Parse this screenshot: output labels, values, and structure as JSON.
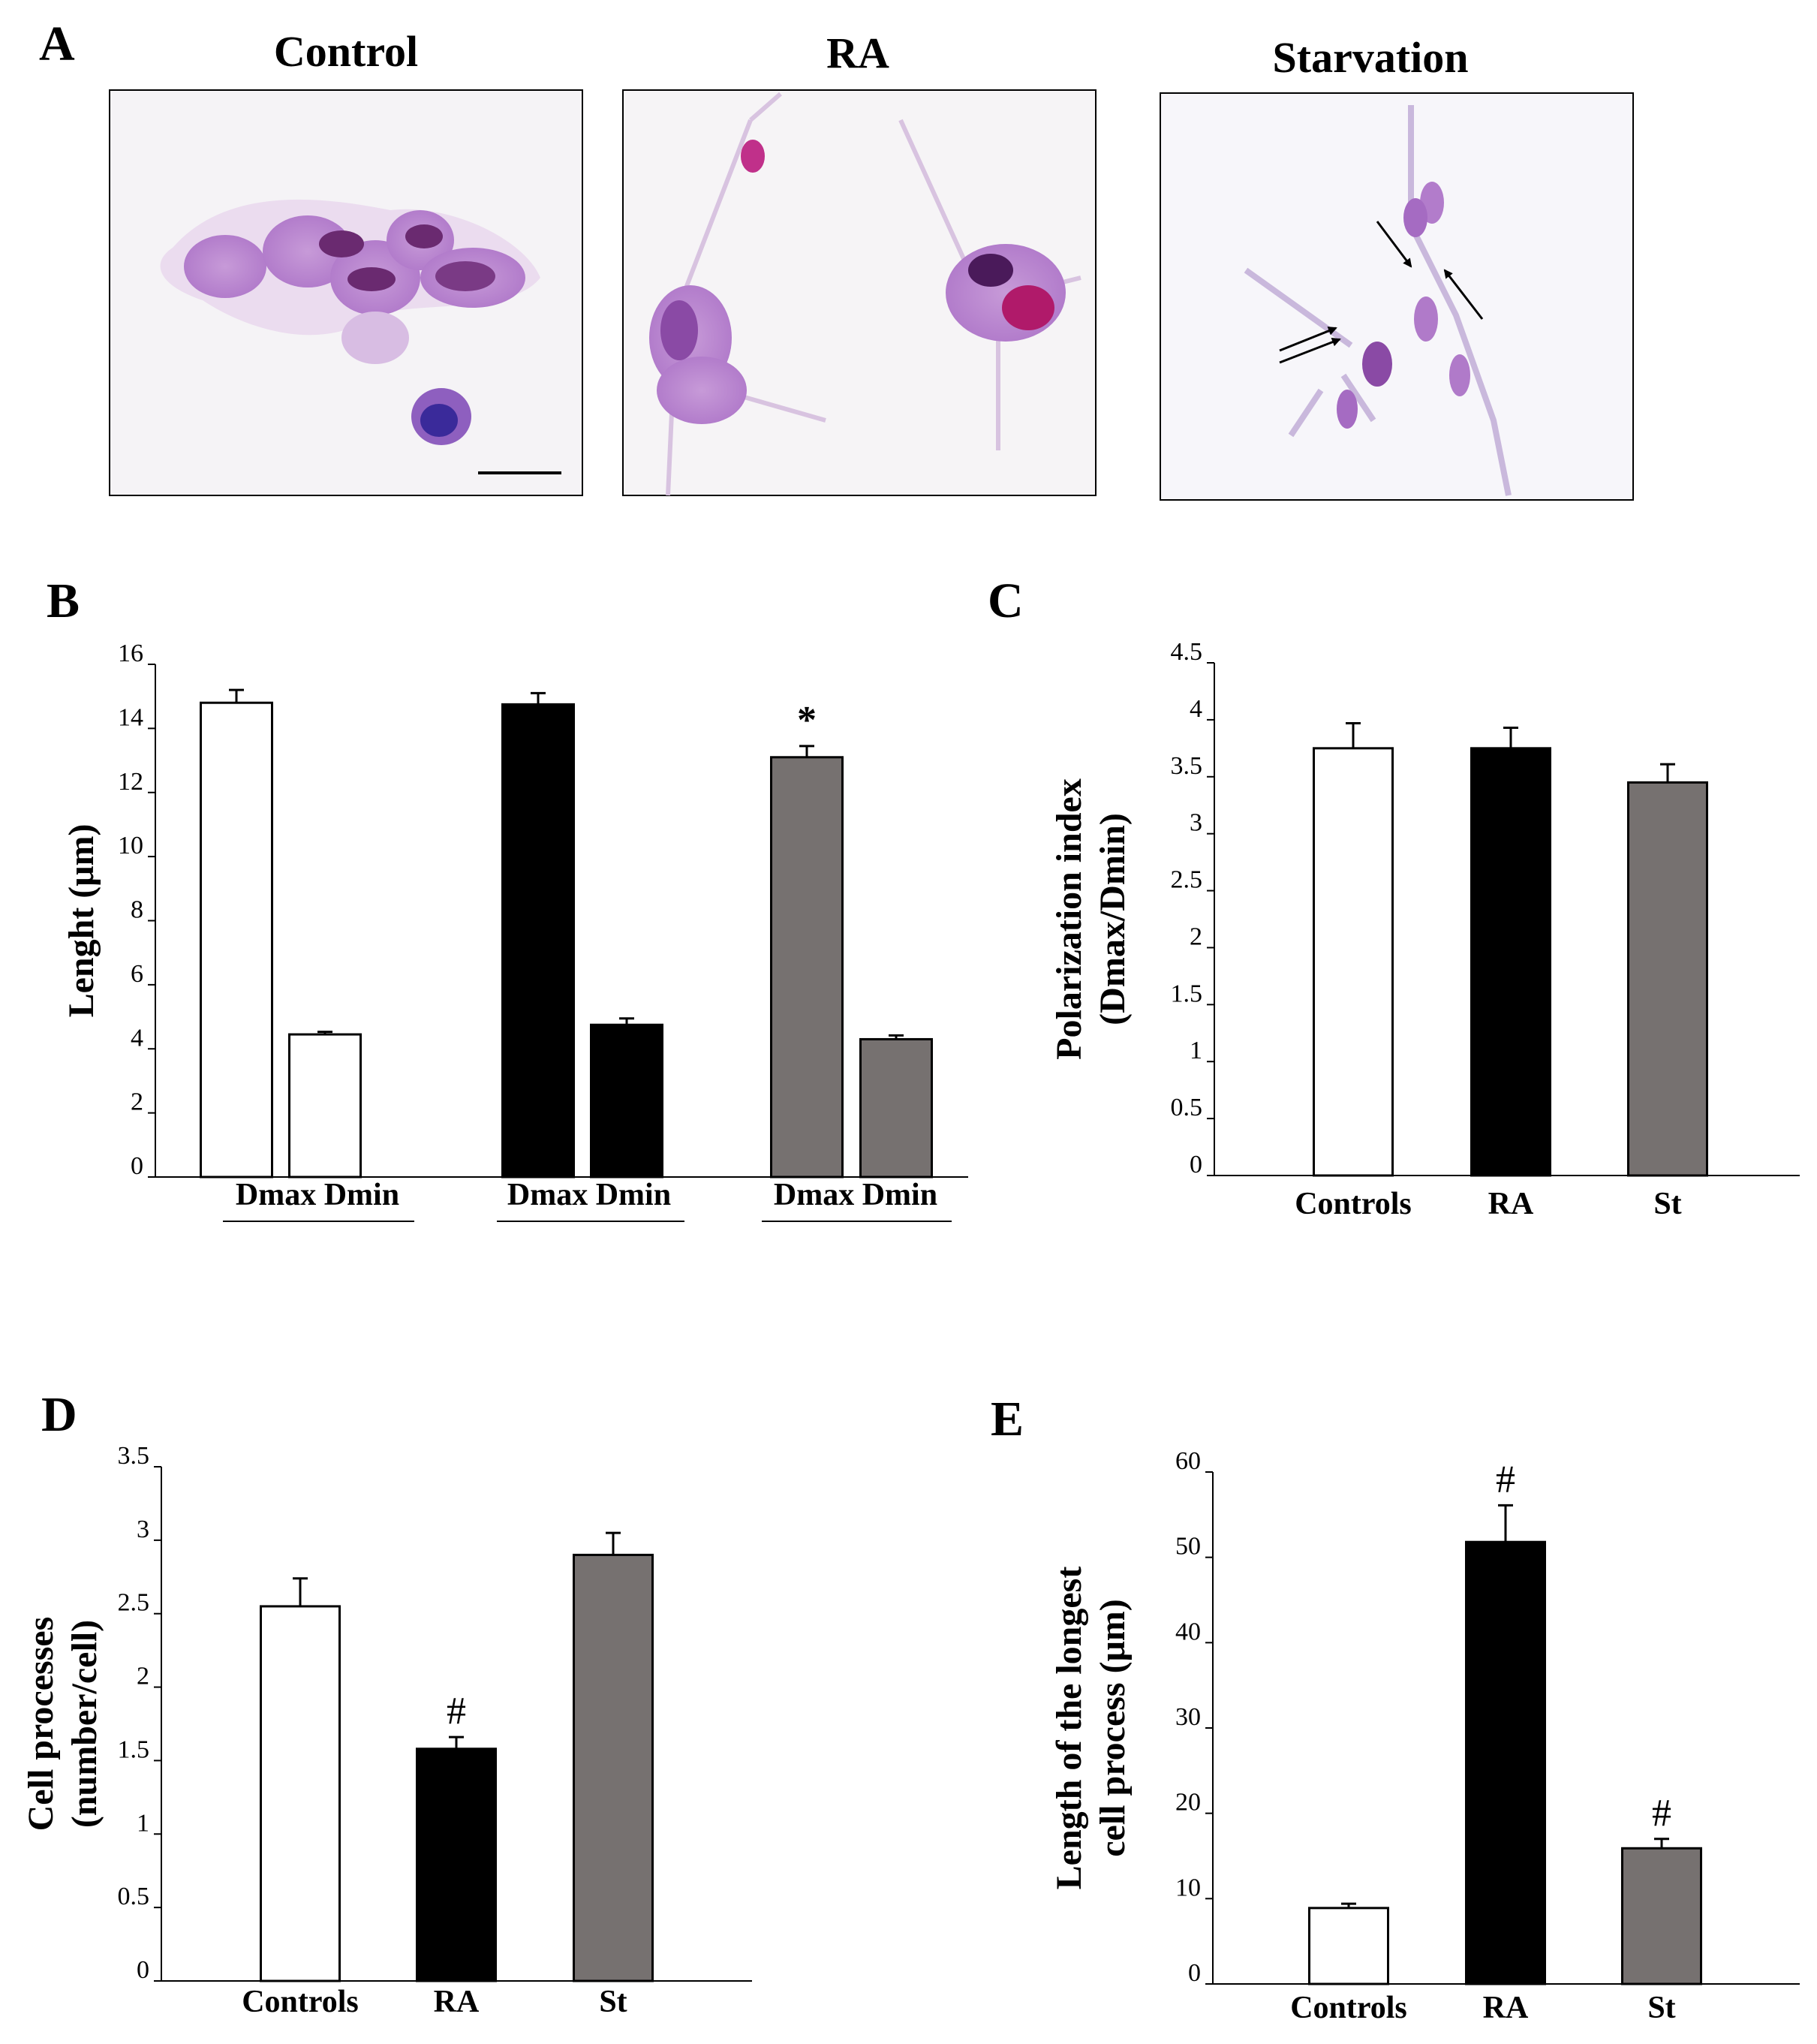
{
  "panels": {
    "A": {
      "letter": "A",
      "images": [
        {
          "title": "Control",
          "content": "micrograph of stained cells with scale bar"
        },
        {
          "title": "RA",
          "content": "micrograph of stained cells with long processes"
        },
        {
          "title": "Starvation",
          "content": "micrograph of stained elongated cells with arrows"
        }
      ]
    },
    "B": {
      "letter": "B"
    },
    "C": {
      "letter": "C"
    },
    "D": {
      "letter": "D"
    },
    "E": {
      "letter": "E"
    }
  },
  "colors": {
    "control": "#ffffff",
    "ra": "#000000",
    "st": "#767170",
    "axis": "#000000"
  },
  "chart_data": [
    {
      "id": "B",
      "type": "bar",
      "ylabel": "Lenght (μm)",
      "ylim": [
        0,
        16
      ],
      "yticks": [
        "0",
        "2",
        "4",
        "6",
        "8",
        "10",
        "12",
        "14",
        "16"
      ],
      "groups": [
        "Dmax Dmin",
        "Dmax Dmin",
        "Dmax Dmin"
      ],
      "categories": [
        "Dmax",
        "Dmin",
        "Dmax",
        "Dmin",
        "Dmax",
        "Dmin"
      ],
      "values": [
        14.8,
        4.45,
        14.75,
        4.75,
        13.1,
        4.3
      ],
      "errors": [
        0.4,
        0.08,
        0.35,
        0.2,
        0.35,
        0.12
      ],
      "colors": [
        "#ffffff",
        "#ffffff",
        "#000000",
        "#000000",
        "#767170",
        "#767170"
      ],
      "annotations": [
        "",
        "",
        "",
        "",
        "*",
        ""
      ]
    },
    {
      "id": "C",
      "type": "bar",
      "ylabel_lines": [
        "Polarization index",
        "(Dmax/Dmin)"
      ],
      "ylim": [
        0,
        4.5
      ],
      "yticks": [
        "0",
        "0.5",
        "1",
        "1.5",
        "2",
        "2.5",
        "3",
        "3.5",
        "4",
        "4.5"
      ],
      "categories": [
        "Controls",
        "RA",
        "St"
      ],
      "values": [
        3.75,
        3.75,
        3.45
      ],
      "errors": [
        0.22,
        0.18,
        0.16
      ],
      "colors": [
        "#ffffff",
        "#000000",
        "#767170"
      ],
      "annotations": [
        "",
        "",
        ""
      ]
    },
    {
      "id": "D",
      "type": "bar",
      "ylabel_lines": [
        "Cell processes",
        "(number/cell)"
      ],
      "ylim": [
        0,
        3.5
      ],
      "yticks": [
        "0",
        "0.5",
        "1",
        "1.5",
        "2",
        "2.5",
        "3",
        "3.5"
      ],
      "categories": [
        "Controls",
        "RA",
        "St"
      ],
      "values": [
        2.55,
        1.58,
        2.9
      ],
      "errors": [
        0.19,
        0.08,
        0.15
      ],
      "colors": [
        "#ffffff",
        "#000000",
        "#767170"
      ],
      "annotations": [
        "",
        "#",
        ""
      ]
    },
    {
      "id": "E",
      "type": "bar",
      "ylabel_lines": [
        "Length of the longest",
        "cell process (μm)"
      ],
      "ylim": [
        0,
        60
      ],
      "yticks": [
        "0",
        "10",
        "20",
        "30",
        "40",
        "50",
        "60"
      ],
      "categories": [
        "Controls",
        "RA",
        "St"
      ],
      "values": [
        8.9,
        51.8,
        15.9
      ],
      "errors": [
        0.5,
        4.3,
        1.1
      ],
      "colors": [
        "#ffffff",
        "#000000",
        "#767170"
      ],
      "annotations": [
        "",
        "#",
        "#"
      ]
    }
  ]
}
